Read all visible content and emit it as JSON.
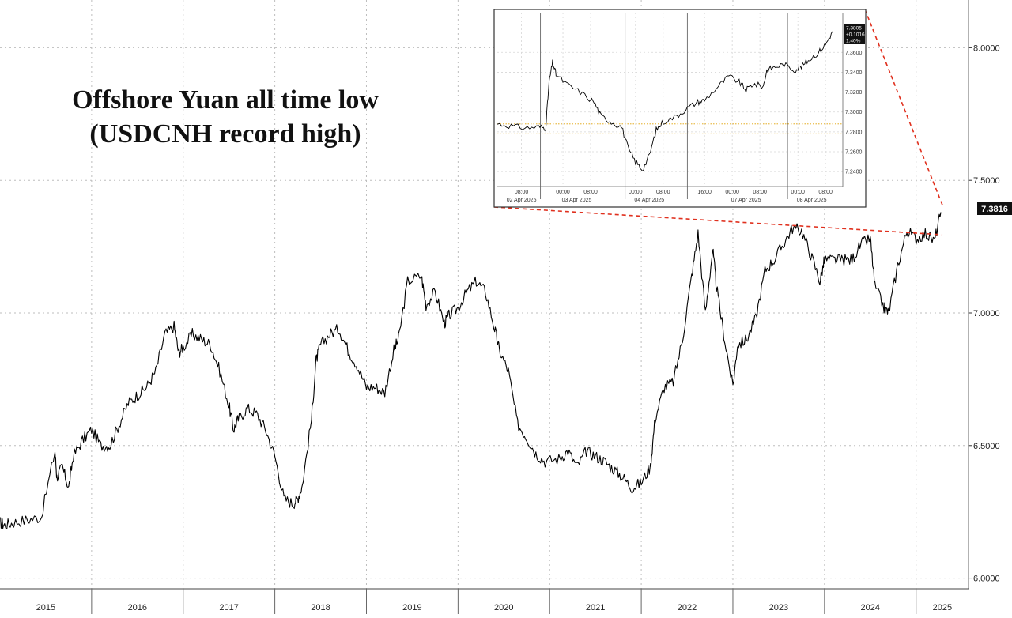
{
  "chart_data": [
    {
      "type": "line",
      "title_lines": [
        "Offshore Yuan all time low",
        "(USDCNH record high)"
      ],
      "ylim": [
        5.96,
        8.18
      ],
      "yticks": [
        "6.0000",
        "6.5000",
        "7.0000",
        "7.5000",
        "8.0000"
      ],
      "ytick_values": [
        6.0,
        6.5,
        7.0,
        7.5,
        8.0
      ],
      "x_categories": [
        "2015",
        "2016",
        "2017",
        "2018",
        "2019",
        "2020",
        "2021",
        "2022",
        "2023",
        "2024",
        "2025"
      ],
      "last_value_label": "7.3816",
      "grid": true,
      "series": [
        {
          "x": [
            2015.0,
            2015.05,
            2015.15,
            2015.3,
            2015.45,
            2015.6,
            2015.62,
            2015.68,
            2015.75,
            2015.8,
            2015.9,
            2016.0,
            2016.1,
            2016.2,
            2016.3,
            2016.4,
            2016.5,
            2016.6,
            2016.7,
            2016.8,
            2016.9,
            2016.95,
            2017.0,
            2017.1,
            2017.2,
            2017.3,
            2017.4,
            2017.5,
            2017.55,
            2017.6,
            2017.7,
            2017.8,
            2017.9,
            2018.0,
            2018.1,
            2018.2,
            2018.25,
            2018.3,
            2018.4,
            2018.45,
            2018.5,
            2018.6,
            2018.7,
            2018.8,
            2018.9,
            2019.0,
            2019.1,
            2019.2,
            2019.3,
            2019.35,
            2019.45,
            2019.6,
            2019.65,
            2019.75,
            2019.85,
            2019.9,
            2020.0,
            2020.1,
            2020.2,
            2020.3,
            2020.4,
            2020.45,
            2020.55,
            2020.65,
            2020.75,
            2020.85,
            2020.95,
            2021.1,
            2021.2,
            2021.3,
            2021.4,
            2021.5,
            2021.6,
            2021.7,
            2021.8,
            2021.9,
            2022.0,
            2022.1,
            2022.15,
            2022.25,
            2022.35,
            2022.45,
            2022.55,
            2022.62,
            2022.7,
            2022.78,
            2022.82,
            2022.9,
            2023.0,
            2023.05,
            2023.15,
            2023.25,
            2023.35,
            2023.45,
            2023.55,
            2023.65,
            2023.75,
            2023.85,
            2023.95,
            2024.0,
            2024.1,
            2024.2,
            2024.3,
            2024.4,
            2024.5,
            2024.55,
            2024.65,
            2024.7,
            2024.8,
            2024.9,
            2025.0,
            2025.1,
            2025.2,
            2025.27
          ],
          "y": [
            6.21,
            6.2,
            6.21,
            6.22,
            6.23,
            6.48,
            6.38,
            6.42,
            6.34,
            6.46,
            6.52,
            6.56,
            6.5,
            6.5,
            6.58,
            6.66,
            6.69,
            6.72,
            6.78,
            6.92,
            6.95,
            6.85,
            6.87,
            6.92,
            6.9,
            6.88,
            6.78,
            6.65,
            6.56,
            6.6,
            6.64,
            6.62,
            6.56,
            6.46,
            6.3,
            6.28,
            6.3,
            6.35,
            6.6,
            6.82,
            6.88,
            6.92,
            6.94,
            6.86,
            6.8,
            6.72,
            6.72,
            6.7,
            6.86,
            6.9,
            7.12,
            7.14,
            7.03,
            7.08,
            6.96,
            6.99,
            7.02,
            7.08,
            7.12,
            7.08,
            6.94,
            6.86,
            6.78,
            6.58,
            6.53,
            6.47,
            6.44,
            6.45,
            6.48,
            6.42,
            6.48,
            6.46,
            6.44,
            6.41,
            6.38,
            6.34,
            6.36,
            6.42,
            6.6,
            6.72,
            6.74,
            6.9,
            7.14,
            7.3,
            7.0,
            7.24,
            7.1,
            6.92,
            6.72,
            6.88,
            6.9,
            6.98,
            7.16,
            7.2,
            7.26,
            7.32,
            7.31,
            7.22,
            7.12,
            7.2,
            7.2,
            7.2,
            7.2,
            7.26,
            7.28,
            7.1,
            7.02,
            7.0,
            7.18,
            7.31,
            7.28,
            7.3,
            7.27,
            7.38
          ]
        }
      ]
    },
    {
      "type": "line",
      "role": "inset",
      "ylim": [
        7.225,
        7.4
      ],
      "yticks": [
        "7.2400",
        "7.2600",
        "7.2800",
        "7.3000",
        "7.3200",
        "7.3400",
        "7.3600"
      ],
      "ytick_values": [
        7.24,
        7.26,
        7.28,
        7.3,
        7.32,
        7.34,
        7.36
      ],
      "time_labels": [
        "08:00",
        "00:00",
        "08:00",
        "00:00",
        "08:00",
        "16:00",
        "00:00",
        "08:00",
        "00:00",
        "08:00"
      ],
      "time_positions": [
        0.07,
        0.19,
        0.27,
        0.4,
        0.48,
        0.6,
        0.68,
        0.76,
        0.87,
        0.95
      ],
      "date_labels": [
        "02 Apr 2025",
        "03 Apr 2025",
        "04 Apr 2025",
        "07 Apr 2025",
        "08 Apr 2025"
      ],
      "date_positions": [
        0.07,
        0.23,
        0.44,
        0.72,
        0.91
      ],
      "last_value_box": [
        "7.3805",
        "+0.1016",
        "1.40%"
      ],
      "reference_levels": [
        7.278,
        7.288
      ],
      "grid": true,
      "series": [
        {
          "x": [
            0.0,
            0.04,
            0.08,
            0.12,
            0.14,
            0.15,
            0.16,
            0.17,
            0.2,
            0.24,
            0.28,
            0.3,
            0.33,
            0.36,
            0.38,
            0.4,
            0.42,
            0.44,
            0.46,
            0.48,
            0.52,
            0.55,
            0.58,
            0.6,
            0.64,
            0.67,
            0.7,
            0.72,
            0.74,
            0.77,
            0.78,
            0.8,
            0.83,
            0.86,
            0.88,
            0.9,
            0.93,
            0.95,
            0.97
          ],
          "y": [
            7.288,
            7.286,
            7.284,
            7.285,
            7.284,
            7.33,
            7.35,
            7.338,
            7.328,
            7.32,
            7.31,
            7.296,
            7.29,
            7.285,
            7.262,
            7.25,
            7.242,
            7.256,
            7.282,
            7.29,
            7.296,
            7.304,
            7.31,
            7.312,
            7.326,
            7.336,
            7.33,
            7.322,
            7.328,
            7.326,
            7.342,
            7.345,
            7.348,
            7.342,
            7.346,
            7.352,
            7.36,
            7.368,
            7.381
          ]
        }
      ]
    }
  ]
}
